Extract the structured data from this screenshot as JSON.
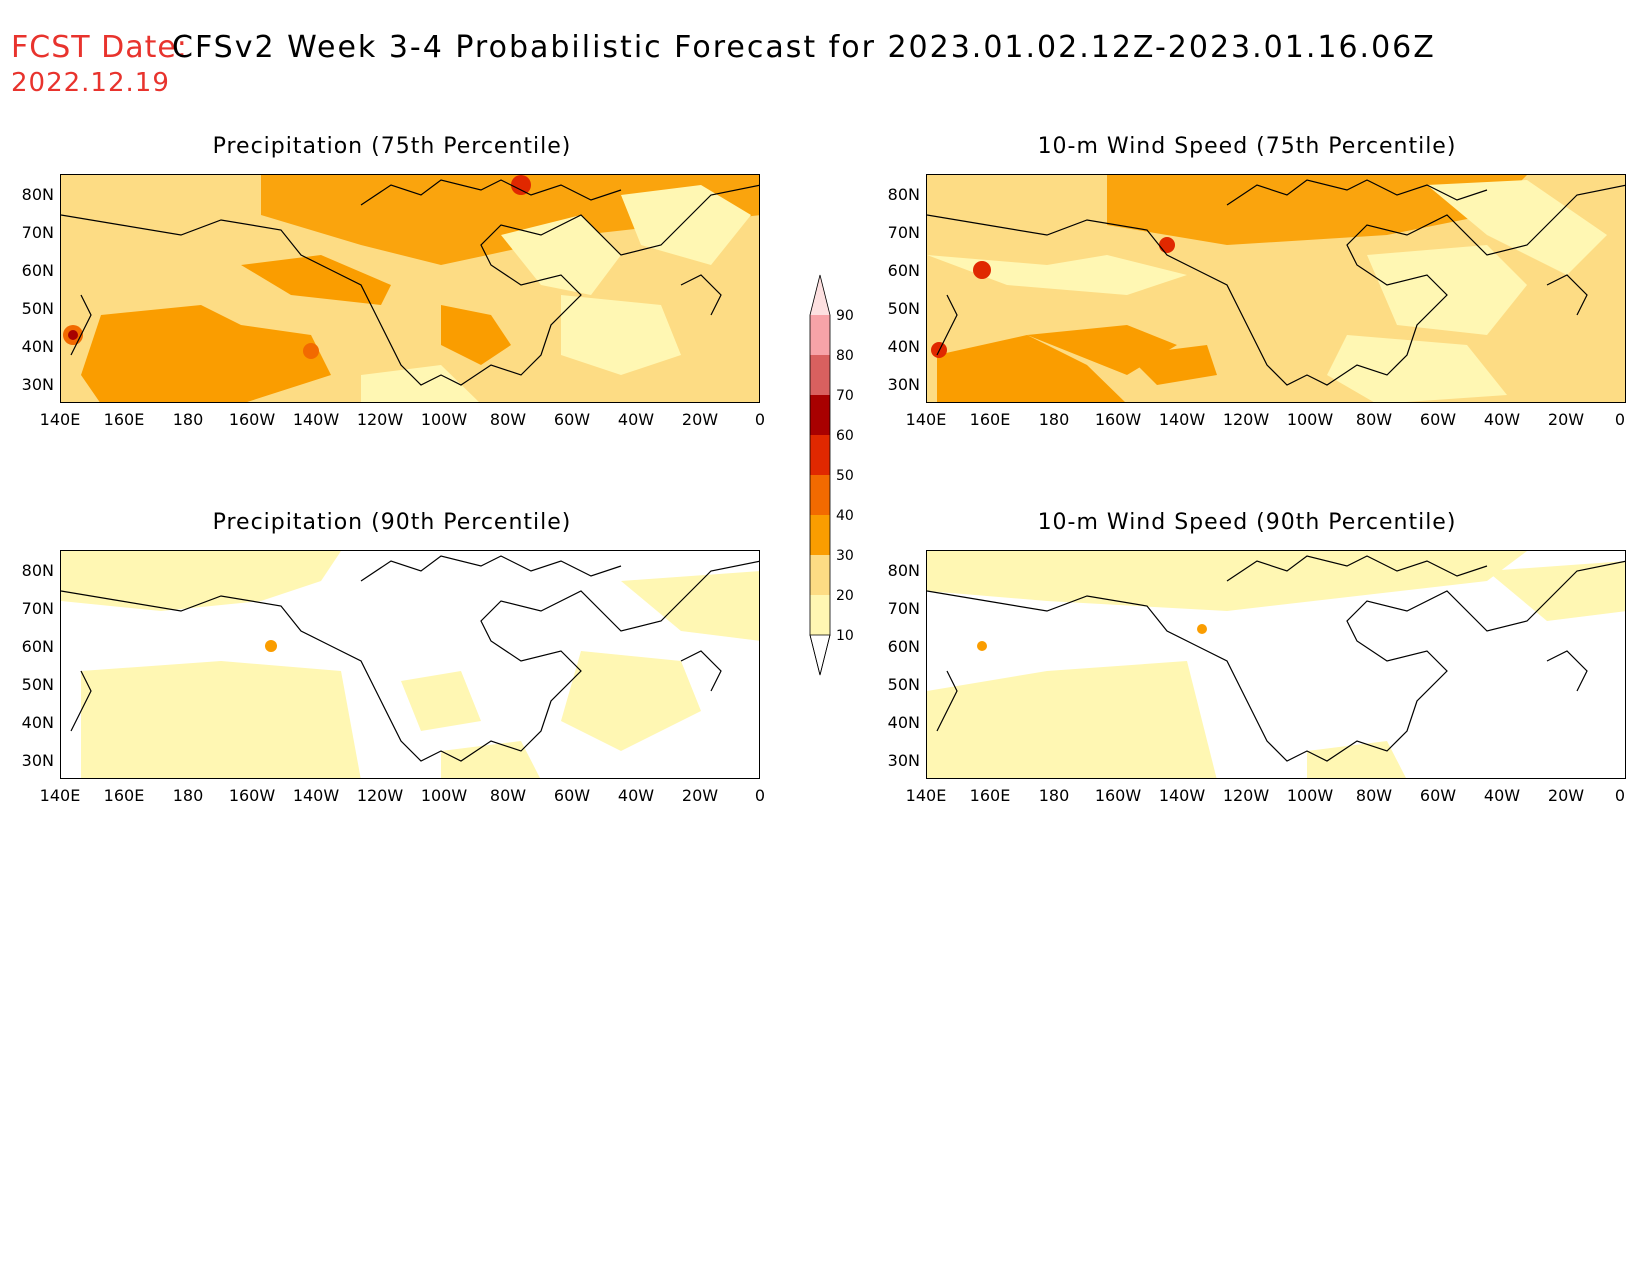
{
  "header": {
    "fcst_label": "FCST Date:",
    "fcst_date": "2022.12.19",
    "title": "CFSv2 Week 3-4 Probabilistic Forecast for 2023.01.02.12Z-2023.01.16.06Z"
  },
  "axes": {
    "lon_labels": [
      "140E",
      "160E",
      "180",
      "160W",
      "140W",
      "120W",
      "100W",
      "80W",
      "60W",
      "40W",
      "20W",
      "0"
    ],
    "lat_labels": [
      "80N",
      "70N",
      "60N",
      "50N",
      "40N",
      "30N"
    ]
  },
  "panels": [
    {
      "id": "precip75",
      "title": "Precipitation (75th Percentile)"
    },
    {
      "id": "wind75",
      "title": "10-m Wind Speed (75th Percentile)"
    },
    {
      "id": "precip90",
      "title": "Precipitation (90th Percentile)"
    },
    {
      "id": "wind90",
      "title": "10-m Wind Speed (90th Percentile)"
    }
  ],
  "colorbar": {
    "levels": [
      "90",
      "80",
      "70",
      "60",
      "50",
      "40",
      "30",
      "20",
      "10"
    ],
    "colors": [
      "#f7a3a8",
      "#d9605f",
      "#a80000",
      "#e02800",
      "#f26a00",
      "#fa9d00",
      "#fddc84",
      "#fff7b3"
    ]
  },
  "palette": {
    "p10": "#fff7b3",
    "p20": "#fddc84",
    "p30": "#fa9d00",
    "p40": "#f26a00",
    "p50": "#e02800",
    "p60": "#a80000"
  }
}
